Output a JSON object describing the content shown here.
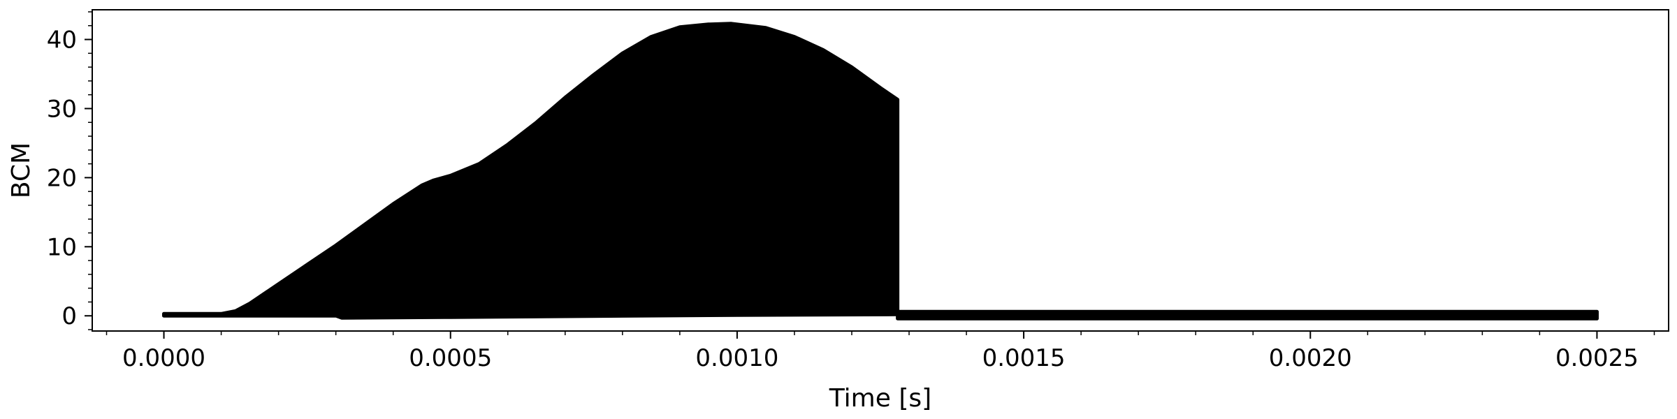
{
  "chart_data": {
    "type": "area",
    "xlabel": "Time [s]",
    "ylabel": "BCM",
    "xlim": [
      -0.000125,
      0.002625
    ],
    "ylim": [
      -2.2,
      44.3
    ],
    "x_ticks": [
      0.0,
      0.0005,
      0.001,
      0.0015,
      0.002,
      0.0025
    ],
    "x_tick_labels": [
      "0.0000",
      "0.0005",
      "0.0010",
      "0.0015",
      "0.0020",
      "0.0025"
    ],
    "y_ticks": [
      0,
      10,
      20,
      30,
      40
    ],
    "y_tick_labels": [
      "0",
      "10",
      "20",
      "30",
      "40"
    ],
    "grid": false,
    "series": [
      {
        "color": "#000000",
        "upper": {
          "x": [
            0.0,
            0.0001,
            0.000125,
            0.00015,
            0.0002,
            0.00025,
            0.0003,
            0.00035,
            0.0004,
            0.00045,
            0.00047,
            0.0005,
            0.00055,
            0.0006,
            0.00065,
            0.0007,
            0.00075,
            0.0008,
            0.00085,
            0.0009,
            0.00095,
            0.00099,
            0.00105,
            0.0011,
            0.00115,
            0.0012,
            0.00125,
            0.00128
          ],
          "y": [
            0.3,
            0.3,
            0.7,
            1.8,
            4.6,
            7.4,
            10.2,
            13.2,
            16.2,
            18.9,
            19.6,
            20.3,
            22.0,
            24.8,
            28.0,
            31.6,
            34.9,
            38.0,
            40.4,
            41.8,
            42.2,
            42.3,
            41.7,
            40.4,
            38.5,
            36.0,
            33.0,
            31.3
          ]
        },
        "lower": {
          "x": [
            0.0,
            0.0001,
            0.0003,
            0.00031,
            0.0005,
            0.001,
            0.00128
          ],
          "y": [
            0.0,
            0.0,
            0.0,
            -0.3,
            -0.2,
            0.1,
            0.2
          ]
        }
      },
      {
        "color": "#000000",
        "upper": {
          "x": [
            0.00128,
            0.0025
          ],
          "y": [
            0.6,
            0.6
          ]
        },
        "lower": {
          "x": [
            0.00128,
            0.0025
          ],
          "y": [
            -0.4,
            -0.4
          ]
        }
      }
    ]
  }
}
